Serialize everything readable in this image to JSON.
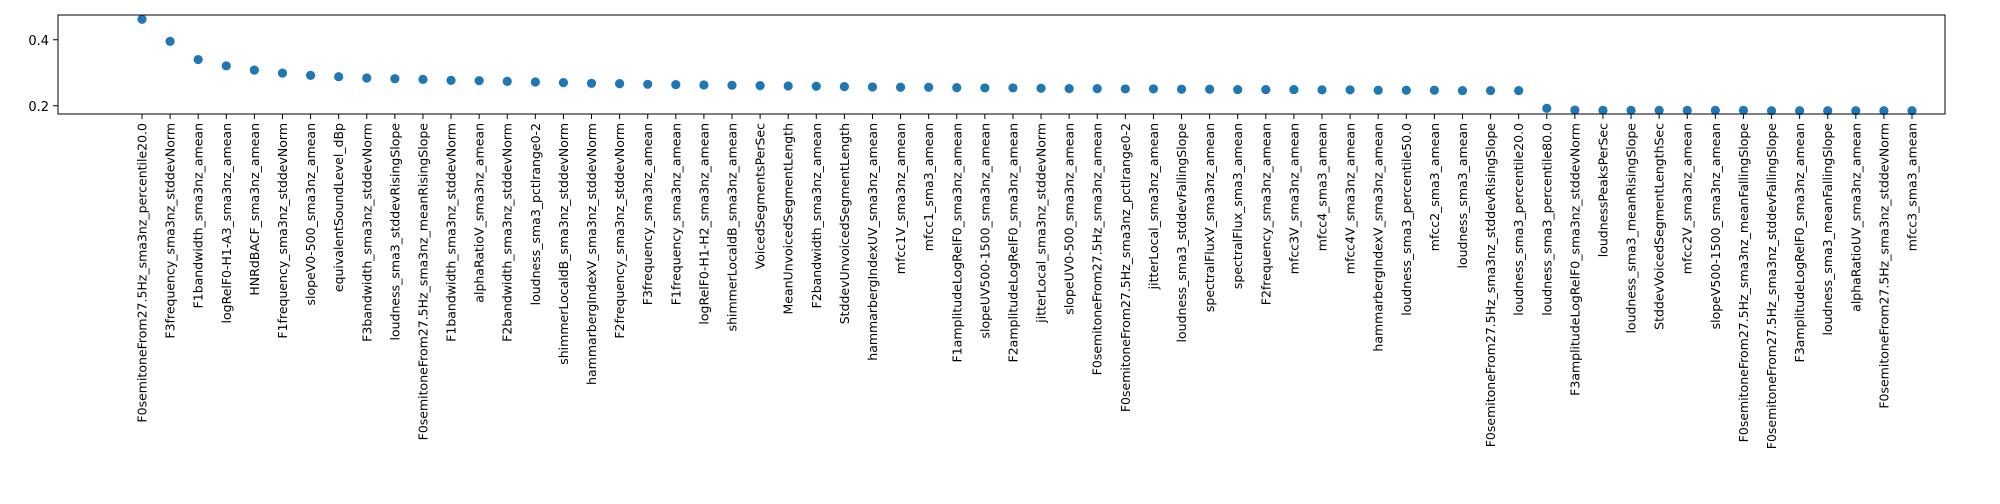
{
  "chart_data": {
    "type": "scatter",
    "title": "",
    "xlabel": "",
    "ylabel": "",
    "ylim": [
      0.175,
      0.475
    ],
    "yticks": [
      0.2,
      0.4
    ],
    "ytick_labels": [
      "0.2",
      "0.4"
    ],
    "grid": false,
    "legend": "none",
    "marker_color": "#1f77b4",
    "categories": [
      "F0semitoneFrom27.5Hz_sma3nz_percentile20.0",
      "F3frequency_sma3nz_stddevNorm",
      "F1bandwidth_sma3nz_amean",
      "logRelF0-H1-A3_sma3nz_amean",
      "HNRdBACF_sma3nz_amean",
      "F1frequency_sma3nz_stddevNorm",
      "slopeV0-500_sma3nz_amean",
      "equivalentSoundLevel_dBp",
      "F3bandwidth_sma3nz_stddevNorm",
      "loudness_sma3_stddevRisingSlope",
      "F0semitoneFrom27.5Hz_sma3nz_meanRisingSlope",
      "F1bandwidth_sma3nz_stddevNorm",
      "alphaRatioV_sma3nz_amean",
      "F2bandwidth_sma3nz_stddevNorm",
      "loudness_sma3_pctlrange0-2",
      "shimmerLocaldB_sma3nz_stddevNorm",
      "hammarbergIndexV_sma3nz_stddevNorm",
      "F2frequency_sma3nz_stddevNorm",
      "F3frequency_sma3nz_amean",
      "F1frequency_sma3nz_amean",
      "logRelF0-H1-H2_sma3nz_amean",
      "shimmerLocaldB_sma3nz_amean",
      "VoicedSegmentsPerSec",
      "MeanUnvoicedSegmentLength",
      "F2bandwidth_sma3nz_amean",
      "StddevUnvoicedSegmentLength",
      "hammarbergIndexUV_sma3nz_amean",
      "mfcc1V_sma3nz_amean",
      "mfcc1_sma3_amean",
      "F1amplitudeLogRelF0_sma3nz_amean",
      "slopeUV500-1500_sma3nz_amean",
      "F2amplitudeLogRelF0_sma3nz_amean",
      "jitterLocal_sma3nz_stddevNorm",
      "slopeUV0-500_sma3nz_amean",
      "F0semitoneFrom27.5Hz_sma3nz_amean",
      "F0semitoneFrom27.5Hz_sma3nz_pctlrange0-2",
      "jitterLocal_sma3nz_amean",
      "loudness_sma3_stddevFallingSlope",
      "spectralFluxV_sma3nz_amean",
      "spectralFlux_sma3_amean",
      "F2frequency_sma3nz_amean",
      "mfcc3V_sma3nz_amean",
      "mfcc4_sma3_amean",
      "mfcc4V_sma3nz_amean",
      "hammarbergIndexV_sma3nz_amean",
      "loudness_sma3_percentile50.0",
      "mfcc2_sma3_amean",
      "loudness_sma3_amean",
      "F0semitoneFrom27.5Hz_sma3nz_stddevRisingSlope",
      "loudness_sma3_percentile20.0",
      "loudness_sma3_percentile80.0",
      "F3amplitudeLogRelF0_sma3nz_stddevNorm",
      "loudnessPeaksPerSec",
      "loudness_sma3_meanRisingSlope",
      "StddevVoicedSegmentLengthSec",
      "mfcc2V_sma3nz_amean",
      "slopeV500-1500_sma3nz_amean",
      "F0semitoneFrom27.5Hz_sma3nz_meanFallingSlope",
      "F0semitoneFrom27.5Hz_sma3nz_stddevFallingSlope",
      "F3amplitudeLogRelF0_sma3nz_amean",
      "loudness_sma3_meanFallingSlope",
      "alphaRatioUV_sma3nz_amean",
      "F0semitoneFrom27.5Hz_sma3nz_stddevNorm",
      "mfcc3_sma3_amean"
    ],
    "values": [
      0.462,
      0.395,
      0.34,
      0.321,
      0.308,
      0.299,
      0.292,
      0.288,
      0.284,
      0.282,
      0.28,
      0.277,
      0.276,
      0.274,
      0.272,
      0.27,
      0.268,
      0.267,
      0.265,
      0.264,
      0.263,
      0.262,
      0.261,
      0.26,
      0.259,
      0.258,
      0.257,
      0.256,
      0.256,
      0.255,
      0.254,
      0.254,
      0.253,
      0.252,
      0.252,
      0.251,
      0.251,
      0.25,
      0.25,
      0.249,
      0.249,
      0.249,
      0.248,
      0.248,
      0.247,
      0.247,
      0.247,
      0.246,
      0.246,
      0.246,
      0.192,
      0.187,
      0.186,
      0.186,
      0.186,
      0.186,
      0.186,
      0.186,
      0.185,
      0.185,
      0.185,
      0.185,
      0.185,
      0.185
    ]
  }
}
